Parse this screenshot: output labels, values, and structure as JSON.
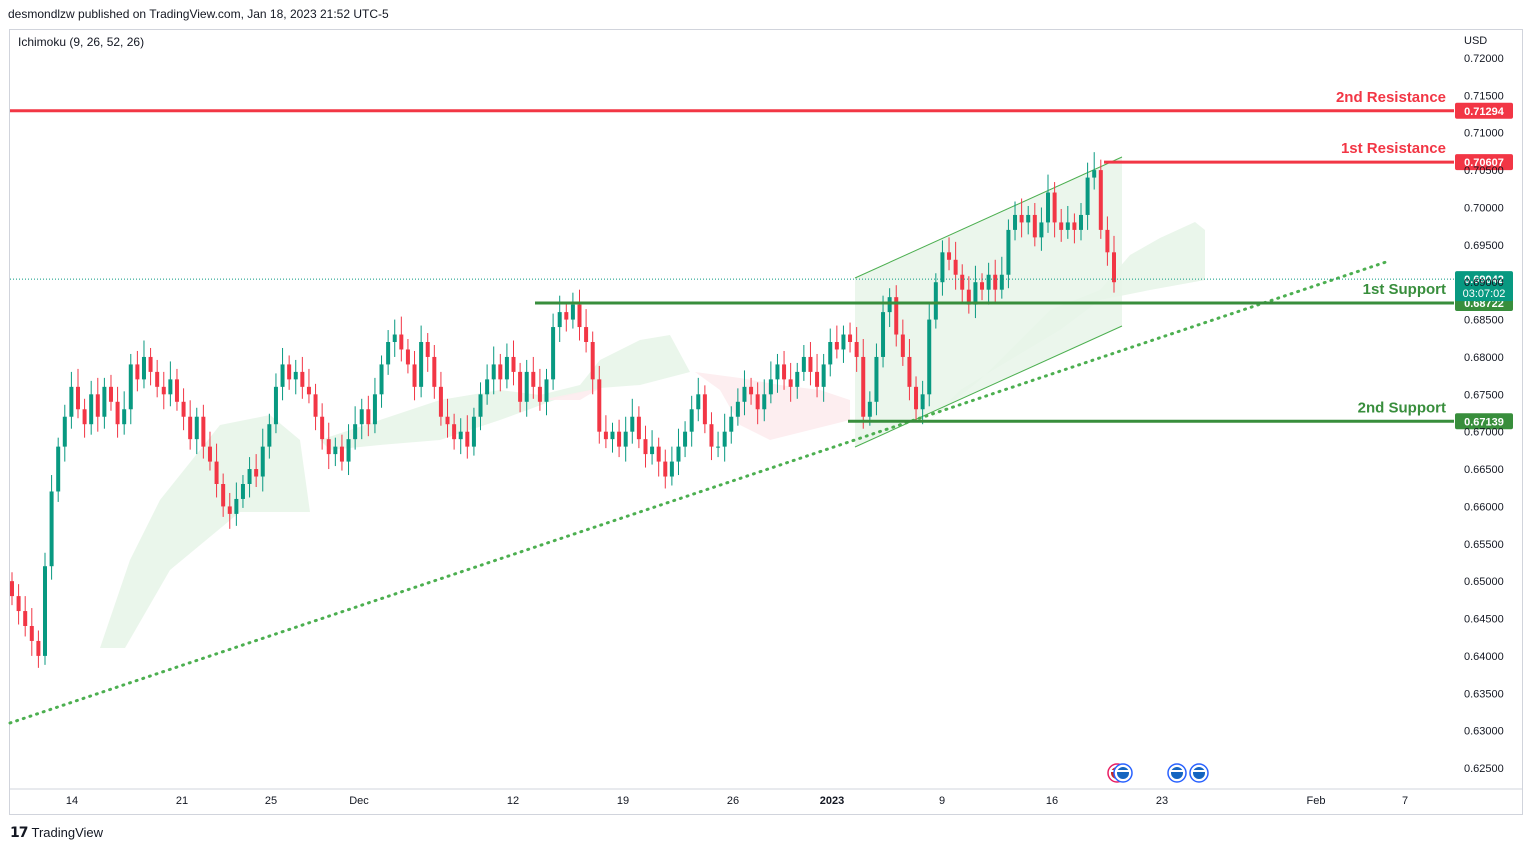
{
  "header": {
    "published_by": "desmondlzw published on TradingView.com, Jan 18, 2023 21:52 UTC-5"
  },
  "indicator": {
    "label": "Ichimoku (9, 26, 52, 26)"
  },
  "footer": {
    "brand": "TradingView",
    "logo_icon": "tradingview-logo-icon"
  },
  "colors": {
    "resistance": "#f23645",
    "support": "#388e3c",
    "up": "#089981",
    "down": "#f23645",
    "channel_fill": "#e8f5e9",
    "trend": "#4caf50"
  },
  "chart_data": {
    "type": "candlestick",
    "currency": "USD",
    "y_ticks": [
      "0.72000",
      "0.71500",
      "0.71000",
      "0.70500",
      "0.70000",
      "0.69500",
      "0.69000",
      "0.68500",
      "0.68000",
      "0.67500",
      "0.67000",
      "0.66500",
      "0.66000",
      "0.65500",
      "0.65000",
      "0.64500",
      "0.64000",
      "0.63500",
      "0.63000",
      "0.62500"
    ],
    "ylim": [
      0.6235,
      0.7225
    ],
    "x_ticks": [
      {
        "label": "14",
        "bold": false
      },
      {
        "label": "21",
        "bold": false
      },
      {
        "label": "25",
        "bold": false
      },
      {
        "label": "Dec",
        "bold": false
      },
      {
        "label": "12",
        "bold": false
      },
      {
        "label": "19",
        "bold": false
      },
      {
        "label": "26",
        "bold": false
      },
      {
        "label": "2023",
        "bold": true
      },
      {
        "label": "9",
        "bold": false
      },
      {
        "label": "16",
        "bold": false
      },
      {
        "label": "23",
        "bold": false
      },
      {
        "label": "Feb",
        "bold": false
      },
      {
        "label": "7",
        "bold": false
      }
    ],
    "levels": [
      {
        "name": "2nd Resistance",
        "value": 0.71294,
        "label": "0.71294",
        "kind": "resistance"
      },
      {
        "name": "1st Resistance",
        "value": 0.70607,
        "label": "0.70607",
        "kind": "resistance"
      },
      {
        "name": "1st Support",
        "value": 0.68722,
        "label": "0.68722",
        "kind": "support"
      },
      {
        "name": "2nd Support",
        "value": 0.67139,
        "label": "0.67139",
        "kind": "support"
      }
    ],
    "last_price": {
      "value": 0.69042,
      "label": "0.69042",
      "countdown": "03:07:02"
    },
    "closes": [
      0.648,
      0.646,
      0.644,
      0.642,
      0.64,
      0.652,
      0.662,
      0.668,
      0.672,
      0.676,
      0.673,
      0.671,
      0.675,
      0.672,
      0.676,
      0.674,
      0.671,
      0.673,
      0.679,
      0.677,
      0.68,
      0.678,
      0.676,
      0.675,
      0.677,
      0.674,
      0.672,
      0.669,
      0.672,
      0.668,
      0.666,
      0.663,
      0.66,
      0.659,
      0.661,
      0.663,
      0.665,
      0.664,
      0.668,
      0.671,
      0.676,
      0.679,
      0.677,
      0.678,
      0.676,
      0.675,
      0.672,
      0.669,
      0.667,
      0.668,
      0.666,
      0.669,
      0.671,
      0.673,
      0.671,
      0.675,
      0.679,
      0.682,
      0.683,
      0.681,
      0.679,
      0.676,
      0.682,
      0.68,
      0.676,
      0.672,
      0.671,
      0.669,
      0.67,
      0.668,
      0.672,
      0.675,
      0.677,
      0.679,
      0.677,
      0.68,
      0.678,
      0.674,
      0.678,
      0.676,
      0.674,
      0.677,
      0.684,
      0.686,
      0.685,
      0.687,
      0.684,
      0.682,
      0.677,
      0.67,
      0.669,
      0.67,
      0.668,
      0.67,
      0.672,
      0.669,
      0.667,
      0.668,
      0.666,
      0.664,
      0.666,
      0.668,
      0.67,
      0.673,
      0.675,
      0.671,
      0.668,
      0.668,
      0.67,
      0.672,
      0.674,
      0.676,
      0.675,
      0.673,
      0.675,
      0.677,
      0.679,
      0.677,
      0.676,
      0.678,
      0.68,
      0.678,
      0.676,
      0.679,
      0.682,
      0.681,
      0.683,
      0.682,
      0.68,
      0.672,
      0.674,
      0.68,
      0.686,
      0.688,
      0.683,
      0.68,
      0.676,
      0.673,
      0.675,
      0.685,
      0.69,
      0.694,
      0.693,
      0.691,
      0.689,
      0.687,
      0.69,
      0.689,
      0.691,
      0.689,
      0.691,
      0.697,
      0.699,
      0.698,
      0.699,
      0.696,
      0.698,
      0.702,
      0.698,
      0.697,
      0.698,
      0.697,
      0.699,
      0.704,
      0.705,
      0.697,
      0.694,
      0.69
    ]
  }
}
